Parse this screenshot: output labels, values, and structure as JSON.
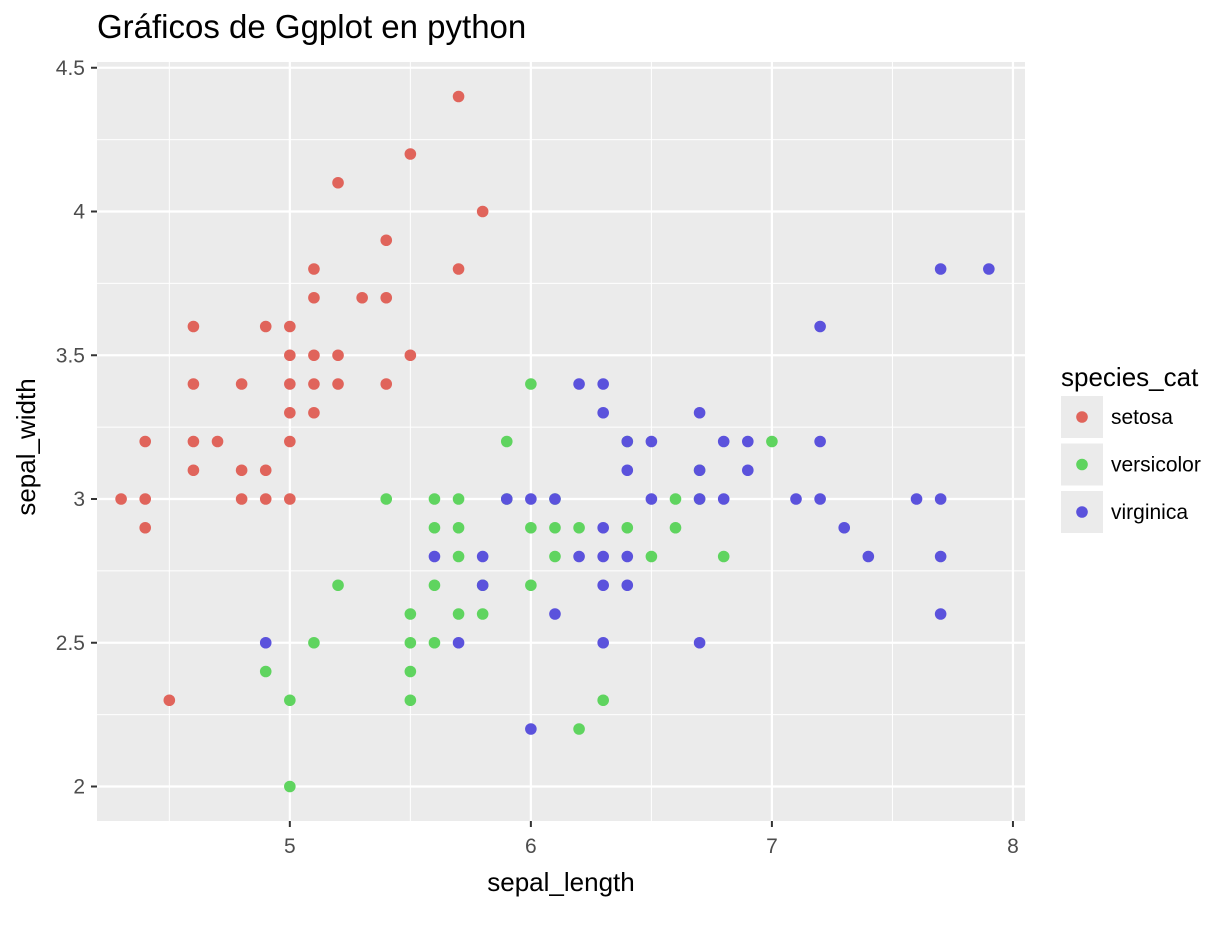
{
  "chart_data": {
    "type": "scatter",
    "title": "Gráficos de Ggplot en python",
    "xlabel": "sepal_length",
    "ylabel": "sepal_width",
    "xlim": [
      4.2,
      8.05
    ],
    "ylim": [
      1.88,
      4.52
    ],
    "x_ticks": [
      5,
      6,
      7,
      8
    ],
    "x_tick_labels": [
      "5",
      "6",
      "7",
      "8"
    ],
    "y_ticks": [
      2,
      2.5,
      3,
      3.5,
      4,
      4.5
    ],
    "y_tick_labels": [
      "2",
      "2.5",
      "3",
      "3.5",
      "4",
      "4.5"
    ],
    "grid": true,
    "legend_position": "right",
    "legend_title": "species_cat",
    "series": [
      {
        "name": "setosa",
        "color": "#e0645b",
        "points": [
          [
            4.3,
            3.0
          ],
          [
            4.4,
            3.2
          ],
          [
            4.4,
            3.0
          ],
          [
            4.4,
            2.9
          ],
          [
            4.5,
            2.3
          ],
          [
            4.6,
            3.6
          ],
          [
            4.6,
            3.4
          ],
          [
            4.6,
            3.2
          ],
          [
            4.6,
            3.1
          ],
          [
            4.7,
            3.2
          ],
          [
            4.8,
            3.4
          ],
          [
            4.8,
            3.1
          ],
          [
            4.8,
            3.0
          ],
          [
            4.9,
            3.6
          ],
          [
            4.9,
            3.1
          ],
          [
            4.9,
            3.0
          ],
          [
            5.0,
            3.6
          ],
          [
            5.0,
            3.5
          ],
          [
            5.0,
            3.4
          ],
          [
            5.0,
            3.3
          ],
          [
            5.0,
            3.2
          ],
          [
            5.0,
            3.0
          ],
          [
            5.1,
            3.8
          ],
          [
            5.1,
            3.7
          ],
          [
            5.1,
            3.5
          ],
          [
            5.1,
            3.4
          ],
          [
            5.1,
            3.3
          ],
          [
            5.2,
            4.1
          ],
          [
            5.2,
            3.5
          ],
          [
            5.2,
            3.4
          ],
          [
            5.3,
            3.7
          ],
          [
            5.4,
            3.9
          ],
          [
            5.4,
            3.7
          ],
          [
            5.4,
            3.4
          ],
          [
            5.5,
            4.2
          ],
          [
            5.5,
            3.5
          ],
          [
            5.7,
            4.4
          ],
          [
            5.7,
            3.8
          ],
          [
            5.8,
            4.0
          ]
        ]
      },
      {
        "name": "versicolor",
        "color": "#5fd45f",
        "points": [
          [
            4.9,
            2.4
          ],
          [
            5.0,
            2.3
          ],
          [
            5.0,
            2.0
          ],
          [
            5.1,
            2.5
          ],
          [
            5.2,
            2.7
          ],
          [
            5.4,
            3.0
          ],
          [
            5.5,
            2.6
          ],
          [
            5.5,
            2.5
          ],
          [
            5.5,
            2.4
          ],
          [
            5.5,
            2.3
          ],
          [
            5.6,
            3.0
          ],
          [
            5.6,
            2.9
          ],
          [
            5.6,
            2.7
          ],
          [
            5.6,
            2.5
          ],
          [
            5.7,
            3.0
          ],
          [
            5.7,
            2.9
          ],
          [
            5.7,
            2.8
          ],
          [
            5.7,
            2.6
          ],
          [
            5.8,
            2.7
          ],
          [
            5.8,
            2.6
          ],
          [
            5.9,
            3.2
          ],
          [
            5.9,
            3.0
          ],
          [
            6.0,
            3.4
          ],
          [
            6.0,
            2.9
          ],
          [
            6.0,
            2.7
          ],
          [
            6.1,
            3.0
          ],
          [
            6.1,
            2.9
          ],
          [
            6.1,
            2.8
          ],
          [
            6.2,
            2.9
          ],
          [
            6.2,
            2.2
          ],
          [
            6.3,
            2.3
          ],
          [
            6.4,
            3.2
          ],
          [
            6.4,
            2.9
          ],
          [
            6.5,
            2.8
          ],
          [
            6.6,
            3.0
          ],
          [
            6.6,
            2.9
          ],
          [
            6.7,
            3.1
          ],
          [
            6.7,
            3.0
          ],
          [
            6.8,
            2.8
          ],
          [
            7.0,
            3.2
          ]
        ]
      },
      {
        "name": "virginica",
        "color": "#5b52dc",
        "points": [
          [
            4.9,
            2.5
          ],
          [
            5.6,
            2.8
          ],
          [
            5.7,
            2.5
          ],
          [
            5.8,
            2.8
          ],
          [
            5.8,
            2.7
          ],
          [
            5.9,
            3.0
          ],
          [
            6.0,
            3.0
          ],
          [
            6.0,
            2.2
          ],
          [
            6.1,
            3.0
          ],
          [
            6.1,
            2.6
          ],
          [
            6.2,
            3.4
          ],
          [
            6.2,
            2.8
          ],
          [
            6.3,
            3.4
          ],
          [
            6.3,
            3.3
          ],
          [
            6.3,
            2.9
          ],
          [
            6.3,
            2.8
          ],
          [
            6.3,
            2.7
          ],
          [
            6.3,
            2.5
          ],
          [
            6.4,
            3.2
          ],
          [
            6.4,
            3.1
          ],
          [
            6.4,
            2.8
          ],
          [
            6.4,
            2.7
          ],
          [
            6.5,
            3.2
          ],
          [
            6.5,
            3.0
          ],
          [
            6.7,
            3.3
          ],
          [
            6.7,
            3.1
          ],
          [
            6.7,
            3.0
          ],
          [
            6.7,
            2.5
          ],
          [
            6.8,
            3.2
          ],
          [
            6.8,
            3.0
          ],
          [
            6.9,
            3.2
          ],
          [
            6.9,
            3.1
          ],
          [
            7.1,
            3.0
          ],
          [
            7.2,
            3.6
          ],
          [
            7.2,
            3.2
          ],
          [
            7.2,
            3.0
          ],
          [
            7.3,
            2.9
          ],
          [
            7.4,
            2.8
          ],
          [
            7.6,
            3.0
          ],
          [
            7.7,
            3.8
          ],
          [
            7.7,
            3.0
          ],
          [
            7.7,
            2.8
          ],
          [
            7.7,
            2.6
          ],
          [
            7.9,
            3.8
          ]
        ]
      }
    ]
  }
}
